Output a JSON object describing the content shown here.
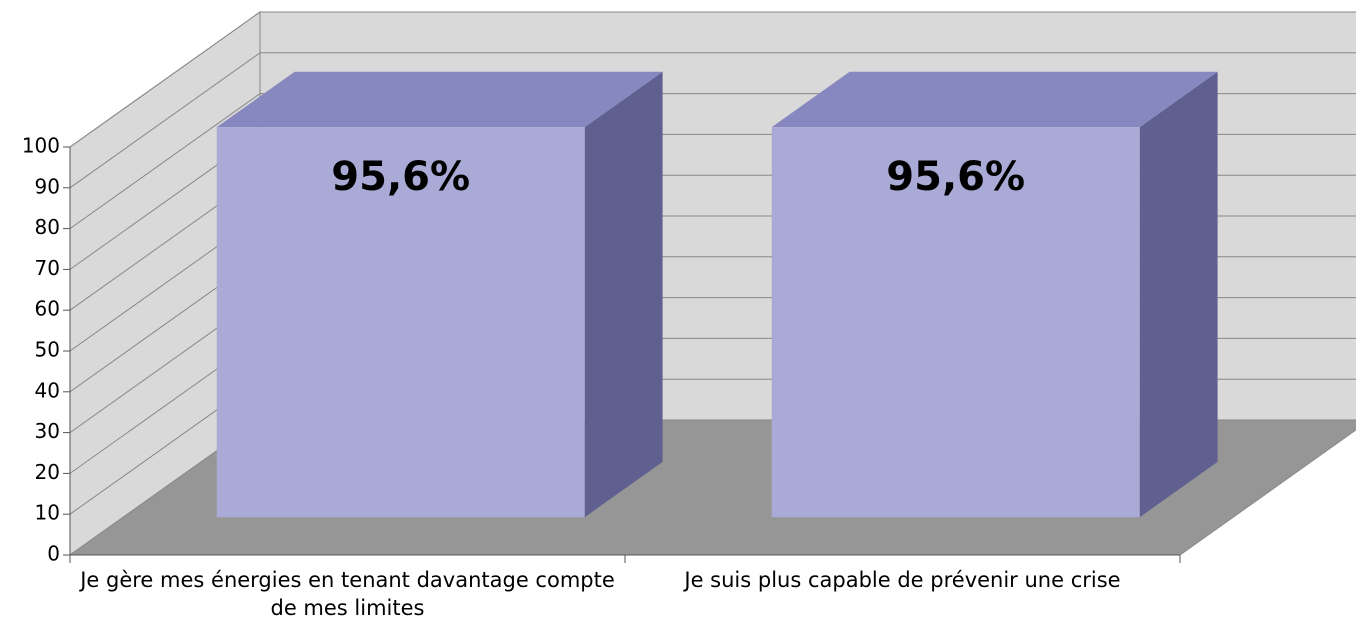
{
  "chart_data": {
    "type": "bar3d",
    "categories": [
      "Je gère mes énergies en tenant davantage compte de mes limites",
      "Je suis plus capable de prévenir une crise"
    ],
    "values": [
      95.6,
      95.6
    ],
    "value_labels": [
      "95,6%",
      "95,6%"
    ],
    "color": "#aaaad6",
    "ylim": [
      0,
      100
    ],
    "yticks": [
      0,
      10,
      20,
      30,
      40,
      50,
      60,
      70,
      80,
      90,
      100
    ],
    "grid": true
  }
}
